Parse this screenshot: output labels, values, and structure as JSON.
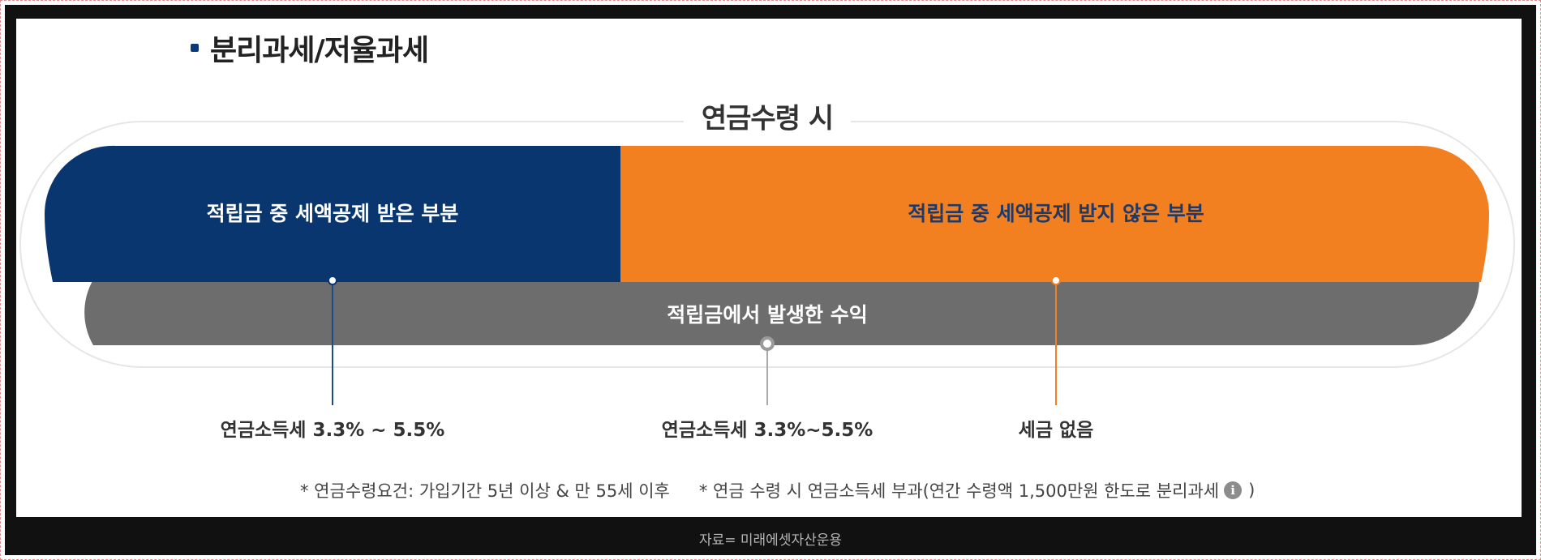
{
  "section": {
    "title": "분리과세/저율과세"
  },
  "diagram": {
    "caption": "연금수령 시",
    "deducted_part": "적립금 중 세액공제 받은 부분",
    "non_deducted_part": "적립금 중 세액공제 받지 않은 부분",
    "earnings_part": "적립금에서 발생한 수익",
    "tax_deducted": "연금소득세 3.3% ~ 5.5%",
    "tax_earnings": "연금소득세 3.3%~5.5%",
    "tax_non_deducted": "세금 없음",
    "colors": {
      "deducted": "#0a3670",
      "non_deducted": "#f28020",
      "earnings": "#6d6d6d"
    }
  },
  "footnotes": {
    "requirement": "* 연금수령요건: 가입기간 5년 이상 & 만 55세 이후",
    "taxation_prefix": "* 연금 수령 시 연금소득세 부과(연간 수령액 1,500만원 한도로 분리과세",
    "taxation_suffix": ")",
    "info_icon": "info-icon"
  },
  "source": "자료= 미래에셋자산운용"
}
